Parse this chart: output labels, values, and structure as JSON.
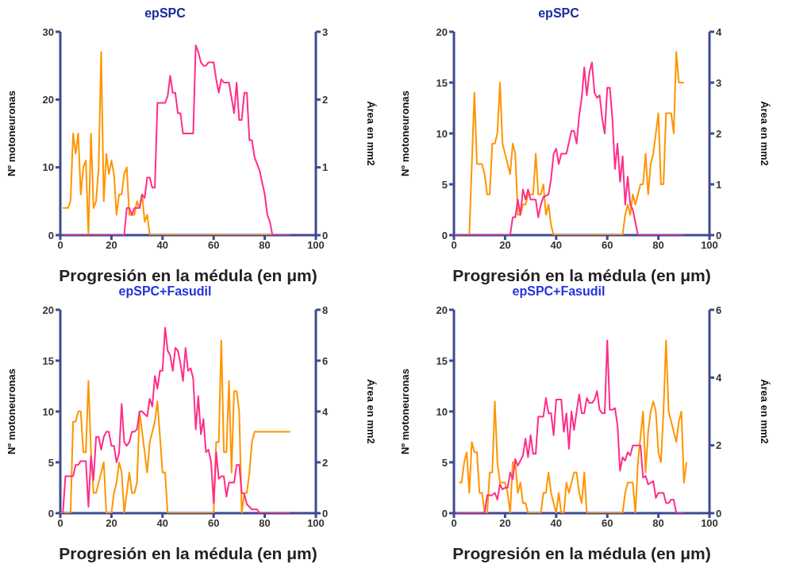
{
  "chart_data": [
    {
      "type": "line",
      "title": "epSPC",
      "xlabel": "Progresión en la médula (en μm)",
      "ylabel": "Nº motoneuronas",
      "y2label": "Área en mm2",
      "xlim": [
        0,
        100
      ],
      "xticks": [
        0,
        20,
        40,
        60,
        80,
        100
      ],
      "ylim": [
        0,
        30
      ],
      "yticks": [
        0,
        10,
        20,
        30
      ],
      "y2lim": [
        0,
        3
      ],
      "y2ticks": [
        0,
        1,
        2,
        3
      ],
      "marker": "none",
      "line_style": "solid",
      "series": [
        {
          "color": "#ff9500",
          "x": [
            1,
            3,
            4,
            5,
            6,
            7,
            8,
            9,
            10,
            11,
            12,
            13,
            14,
            15,
            16,
            17,
            18,
            19,
            20,
            21,
            22,
            23,
            24,
            25,
            26,
            27,
            28,
            29,
            30,
            31,
            32,
            33,
            34,
            35,
            90
          ],
          "values": [
            4,
            4,
            5,
            15,
            12,
            15,
            6,
            10,
            11,
            0,
            15,
            4,
            5,
            10,
            27,
            5,
            12,
            9,
            11,
            9,
            3,
            6,
            6,
            9,
            10,
            3,
            3,
            3,
            5,
            4,
            6,
            2,
            3,
            0,
            0
          ]
        },
        {
          "color": "#ff2d8a",
          "axis": "y2",
          "x": [
            1,
            25,
            26,
            27,
            28,
            29,
            30,
            31,
            32,
            33,
            34,
            35,
            36,
            37,
            38,
            41,
            42,
            43,
            44,
            45,
            46,
            47,
            48,
            52,
            53,
            54,
            55,
            56,
            57,
            58,
            60,
            61,
            62,
            63,
            64,
            66,
            68,
            69,
            70,
            71,
            72,
            73,
            74,
            75,
            76,
            78,
            80,
            81,
            82,
            83,
            90
          ],
          "values": [
            0,
            0,
            0.4,
            0.4,
            0.3,
            0.4,
            0.4,
            0.4,
            0.6,
            0.55,
            0.85,
            0.85,
            0.7,
            0.7,
            1.95,
            1.95,
            2.05,
            2.35,
            2.1,
            2.1,
            1.8,
            1.8,
            1.5,
            1.5,
            2.8,
            2.7,
            2.55,
            2.5,
            2.5,
            2.55,
            2.55,
            2.3,
            2.1,
            2.3,
            2.25,
            2.25,
            1.8,
            2.25,
            1.7,
            1.7,
            2.1,
            2.1,
            1.4,
            1.4,
            1.15,
            0.95,
            0.6,
            0.3,
            0.2,
            0,
            0
          ]
        }
      ]
    },
    {
      "type": "line",
      "title": "epSPC",
      "xlabel": "Progresión en la médula (en μm)",
      "ylabel": "Nº motoneuronas",
      "y2label": "Área en mm2",
      "xlim": [
        0,
        100
      ],
      "xticks": [
        0,
        20,
        40,
        60,
        80,
        100
      ],
      "ylim": [
        0,
        20
      ],
      "yticks": [
        0,
        5,
        10,
        15,
        20
      ],
      "y2lim": [
        0,
        4
      ],
      "y2ticks": [
        0,
        1,
        2,
        3,
        4
      ],
      "marker": "none",
      "line_style": "solid",
      "series": [
        {
          "color": "#ff9500",
          "x": [
            0,
            6,
            8,
            9,
            11,
            12,
            13,
            14,
            15,
            16,
            17,
            18,
            19,
            20,
            21,
            22,
            23,
            24,
            25,
            26,
            27,
            28,
            29,
            31,
            32,
            33,
            34,
            35,
            36,
            37,
            38,
            39,
            66,
            67,
            68,
            69,
            70,
            71,
            73,
            74,
            75,
            76,
            77,
            78,
            80,
            81,
            82,
            83,
            85,
            86,
            87,
            88,
            90
          ],
          "values": [
            0,
            0,
            14,
            7,
            7,
            6,
            4,
            4,
            9,
            9,
            10,
            15,
            9,
            8,
            7,
            6,
            9,
            8,
            2,
            2,
            3,
            3,
            4,
            4,
            8,
            4,
            4,
            5,
            2,
            3,
            1,
            0,
            0,
            2,
            3,
            2,
            4,
            3,
            5,
            5,
            8,
            4,
            7,
            8,
            12,
            5,
            5,
            12,
            12,
            10,
            18,
            15,
            15
          ]
        },
        {
          "color": "#ff2d8a",
          "axis": "y2",
          "x": [
            0,
            22,
            23,
            24,
            25,
            26,
            27,
            28,
            29,
            30,
            32,
            33,
            34,
            35,
            37,
            38,
            39,
            40,
            41,
            42,
            44,
            46,
            47,
            48,
            49,
            50,
            51,
            52,
            53,
            54,
            55,
            56,
            57,
            58,
            59,
            60,
            61,
            62,
            63,
            64,
            65,
            66,
            67,
            68,
            69,
            70,
            72,
            90
          ],
          "values": [
            0,
            0,
            0.35,
            0.35,
            0.7,
            0.4,
            0.9,
            0.7,
            0.9,
            0.7,
            0.7,
            0.35,
            0.6,
            0.75,
            0.8,
            1.1,
            1.6,
            1.7,
            1.4,
            1.6,
            1.6,
            2.05,
            2.05,
            1.8,
            2.35,
            2.7,
            3.3,
            2.75,
            3.2,
            3.4,
            2.8,
            2.7,
            2.75,
            2.3,
            2,
            2.9,
            2.9,
            2.3,
            1.3,
            1.8,
            1.05,
            1.55,
            0.6,
            1.15,
            0.6,
            0.5,
            0,
            0
          ]
        }
      ]
    },
    {
      "type": "line",
      "title": "epSPC+Fasudil",
      "xlabel": "Progresión en la médula (en μm)",
      "ylabel": "Nº motoneuronas",
      "y2label": "Área en mm2",
      "xlim": [
        0,
        100
      ],
      "xticks": [
        0,
        20,
        40,
        60,
        80,
        100
      ],
      "ylim": [
        0,
        20
      ],
      "yticks": [
        0,
        5,
        10,
        15,
        20
      ],
      "y2lim": [
        0,
        8
      ],
      "y2ticks": [
        0,
        2,
        4,
        6,
        8
      ],
      "marker": "none",
      "line_style": "solid",
      "series": [
        {
          "color": "#ff9500",
          "x": [
            0,
            4,
            5,
            6,
            7,
            8,
            9,
            10,
            11,
            12,
            13,
            14,
            17,
            18,
            20,
            21,
            22,
            23,
            24,
            25,
            27,
            28,
            29,
            30,
            31,
            33,
            34,
            35,
            37,
            38,
            40,
            41,
            42,
            60,
            61,
            62,
            63,
            64,
            65,
            66,
            67,
            68,
            69,
            70,
            71,
            72,
            73,
            74,
            75,
            76,
            90
          ],
          "values": [
            0,
            0,
            9,
            9,
            10,
            10,
            6,
            6,
            13,
            6,
            2,
            2,
            5,
            0,
            0,
            2,
            3,
            5,
            4,
            0,
            4,
            2,
            2,
            3,
            10,
            6,
            4,
            7,
            9,
            11,
            4,
            4,
            0,
            0,
            7,
            7,
            17,
            6,
            6,
            13,
            4,
            12,
            12,
            10,
            0,
            2,
            2,
            4,
            7,
            8,
            8
          ]
        },
        {
          "color": "#ff2d8a",
          "axis": "y2",
          "x": [
            1,
            2,
            3,
            4,
            5,
            6,
            7,
            8,
            9,
            10,
            11,
            12,
            13,
            14,
            15,
            16,
            17,
            18,
            19,
            20,
            21,
            22,
            23,
            24,
            25,
            26,
            27,
            28,
            29,
            30,
            31,
            32,
            33,
            34,
            35,
            36,
            37,
            38,
            39,
            40,
            41,
            42,
            43,
            44,
            45,
            46,
            47,
            48,
            49,
            50,
            51,
            52,
            53,
            54,
            55,
            56,
            57,
            58,
            59,
            60,
            61,
            62,
            63,
            64,
            65,
            66,
            67,
            68,
            69,
            70,
            71,
            72,
            73,
            75,
            77,
            78,
            90
          ],
          "values": [
            0,
            1.45,
            1.45,
            1.45,
            1.45,
            1.9,
            1.9,
            2.05,
            2.05,
            2.05,
            0.25,
            2.25,
            1.3,
            3,
            3,
            2.5,
            3,
            3.2,
            3.2,
            2.65,
            2.65,
            2,
            2.35,
            4.3,
            2.8,
            2.65,
            2.8,
            3.2,
            3.2,
            3.3,
            4,
            4,
            3.9,
            3.8,
            4.5,
            4.2,
            5.4,
            4.9,
            5.6,
            5.6,
            7.3,
            6.4,
            6.2,
            5.6,
            6.5,
            6.4,
            5.9,
            5.2,
            6.5,
            5.6,
            5.7,
            5.3,
            3.3,
            4.6,
            3.1,
            3.7,
            2.4,
            2.5,
            2,
            0.4,
            2.4,
            1.35,
            1.45,
            1.45,
            0.65,
            1.2,
            1.2,
            1.2,
            1.9,
            1.9,
            0.8,
            0.75,
            0.35,
            0.15,
            0.15,
            0,
            0
          ]
        }
      ]
    },
    {
      "type": "line",
      "title": "epSPC+Fasudil",
      "xlabel": "Progresión en la médula (en μm)",
      "ylabel": "Nº motoneuronas",
      "y2label": "Área en mm2",
      "xlim": [
        0,
        100
      ],
      "xticks": [
        0,
        20,
        40,
        60,
        80,
        100
      ],
      "ylim": [
        0,
        20
      ],
      "yticks": [
        0,
        5,
        10,
        15,
        20
      ],
      "y2lim": [
        0,
        6
      ],
      "y2ticks": [
        0,
        2,
        4,
        6
      ],
      "marker": "none",
      "line_style": "solid",
      "series": [
        {
          "color": "#ff9500",
          "x": [
            2,
            3,
            4,
            5,
            6,
            7,
            8,
            9,
            10,
            11,
            12,
            13,
            14,
            15,
            16,
            17,
            18,
            19,
            20,
            21,
            22,
            23,
            24,
            25,
            26,
            27,
            28,
            29,
            34,
            35,
            36,
            37,
            38,
            40,
            41,
            42,
            43,
            44,
            45,
            47,
            48,
            49,
            50,
            51,
            52,
            66,
            67,
            68,
            70,
            71,
            72,
            74,
            75,
            76,
            77,
            78,
            79,
            80,
            81,
            82,
            83,
            84,
            86,
            87,
            88,
            89,
            90,
            91
          ],
          "values": [
            3,
            3,
            5,
            6,
            2,
            7,
            6,
            6,
            2,
            2,
            0,
            0,
            4,
            4,
            11,
            5,
            3,
            3,
            3,
            2,
            0,
            5,
            5,
            2,
            3,
            1,
            1,
            0,
            0,
            2,
            2,
            4,
            2,
            0,
            2,
            0,
            0,
            3,
            2,
            4,
            4,
            2,
            1,
            4,
            0,
            0,
            2,
            3,
            3,
            0,
            5,
            10,
            4,
            8,
            10,
            11,
            10,
            6,
            5,
            10,
            17,
            10,
            8,
            7,
            9,
            10,
            3,
            5
          ]
        },
        {
          "color": "#ff2d8a",
          "axis": "y2",
          "x": [
            1,
            12,
            13,
            15,
            16,
            17,
            18,
            19,
            20,
            21,
            22,
            23,
            24,
            25,
            26,
            27,
            28,
            29,
            30,
            31,
            32,
            33,
            35,
            36,
            37,
            38,
            39,
            40,
            42,
            43,
            44,
            45,
            46,
            47,
            48,
            49,
            50,
            51,
            52,
            53,
            54,
            55,
            56,
            57,
            58,
            59,
            60,
            61,
            62,
            63,
            64,
            65,
            66,
            67,
            68,
            69,
            70,
            73,
            74,
            75,
            76,
            78,
            79,
            80,
            82,
            83,
            84,
            85,
            86,
            87,
            90
          ],
          "values": [
            0,
            0,
            0.53,
            0.53,
            0.6,
            0.4,
            0.85,
            0.7,
            0.75,
            0.75,
            1.2,
            1,
            1.6,
            1.4,
            1.55,
            1.7,
            2.2,
            1.65,
            2.3,
            1.75,
            1.75,
            2.85,
            2.85,
            3.4,
            2.95,
            2.95,
            2.3,
            3.35,
            3.35,
            2.4,
            2.95,
            1.9,
            3,
            2.45,
            3,
            3.5,
            2.95,
            2.95,
            3.4,
            3.25,
            3.25,
            3.35,
            3.6,
            3.05,
            2.95,
            2.95,
            5.1,
            3.05,
            3.05,
            3.1,
            2.6,
            1.25,
            1.65,
            1.55,
            1.8,
            1.7,
            2,
            2,
            1.05,
            1.1,
            0.85,
            0.95,
            0.45,
            0.6,
            0.6,
            0.3,
            0.3,
            0.4,
            0.4,
            0,
            0
          ]
        }
      ]
    }
  ]
}
